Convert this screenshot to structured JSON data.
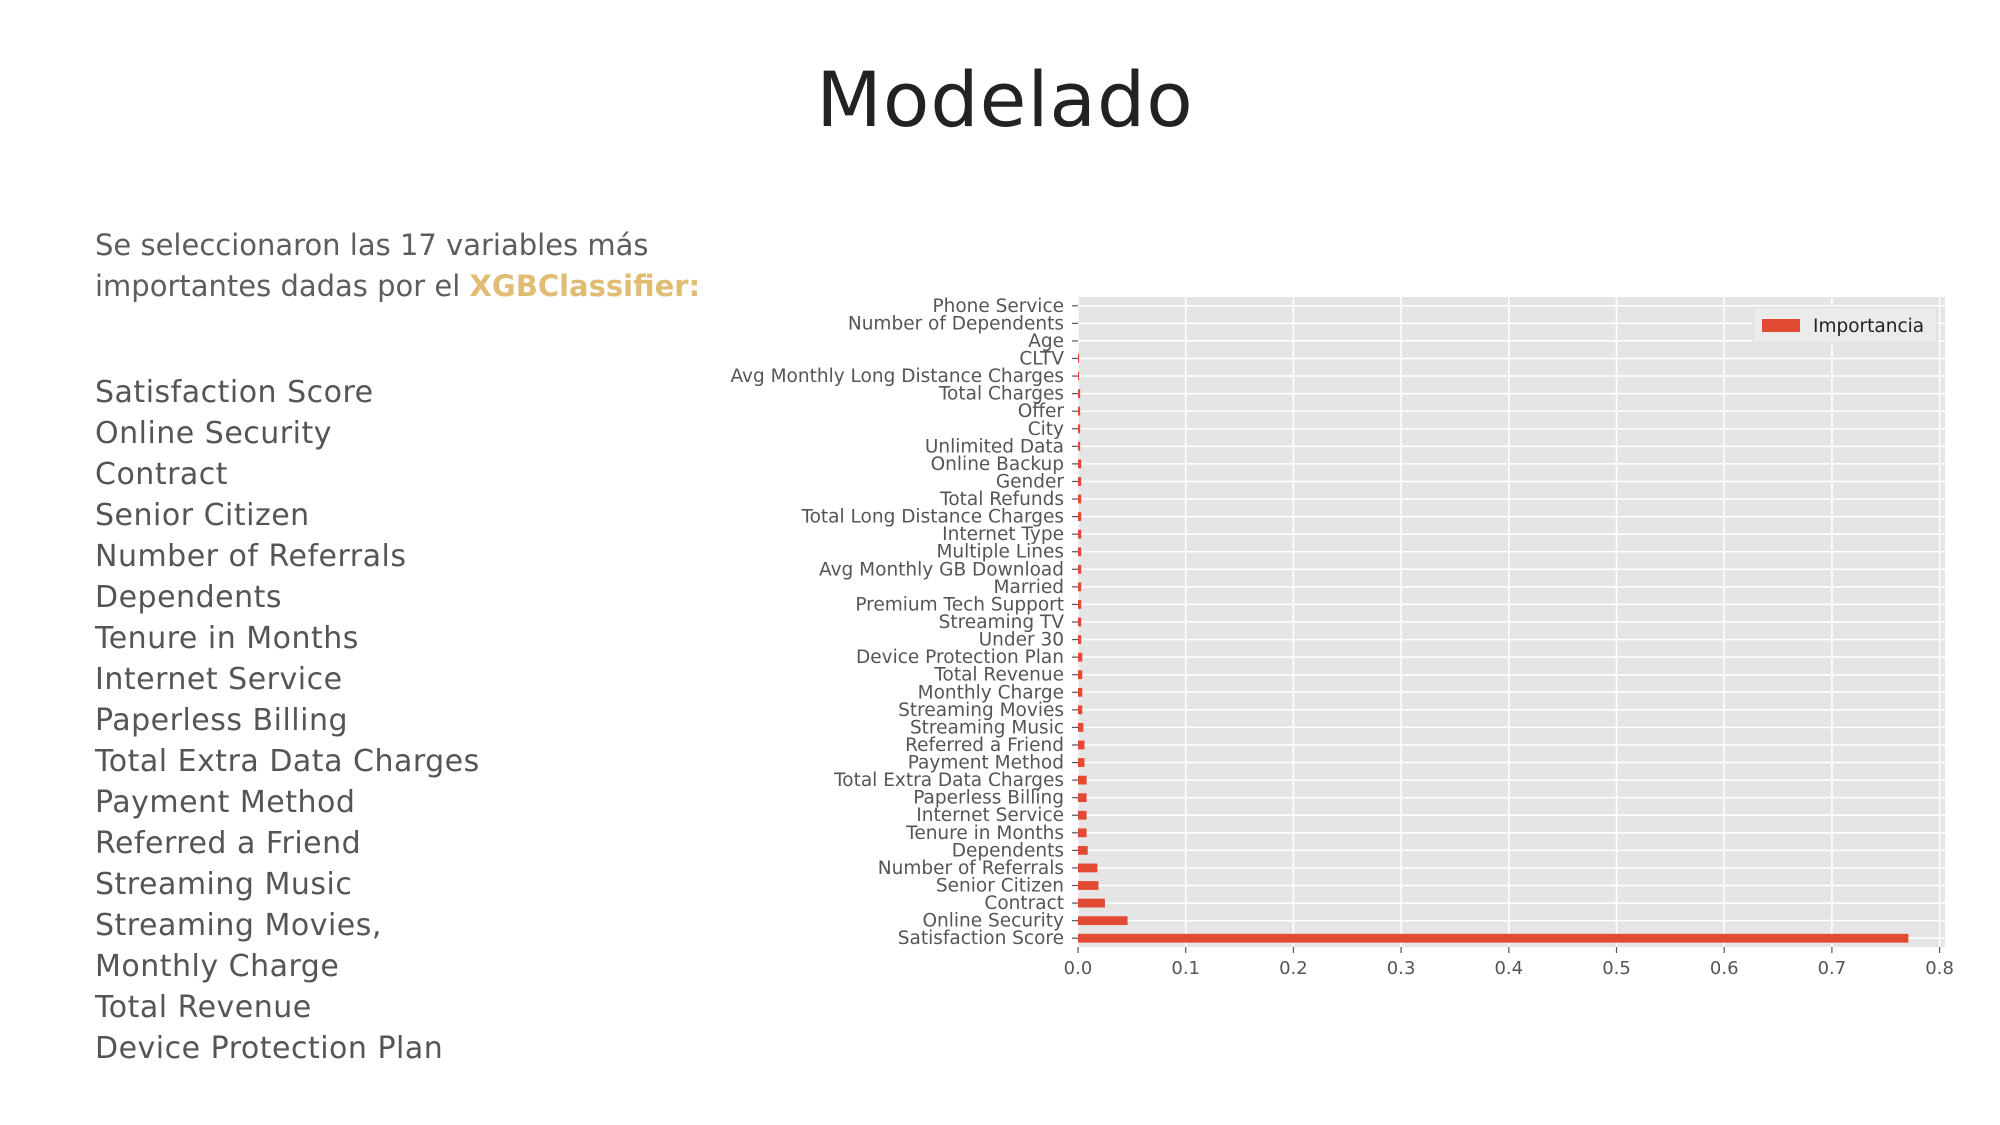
{
  "slide": {
    "title": "Modelado",
    "intro_prefix": "Se seleccionaron las 17 variables más importantes dadas por el",
    "intro_accent": "XGBClassifier:",
    "selected_variables": [
      "Satisfaction Score",
      "Online Security",
      "Contract",
      "Senior Citizen",
      "Number of Referrals",
      "Dependents",
      "Tenure in Months",
      "Internet Service",
      "Paperless Billing",
      "Total Extra Data Charges",
      "Payment Method",
      "Referred a Friend",
      "Streaming Music",
      "Streaming Movies,",
      "Monthly Charge",
      "Total Revenue",
      "Device Protection Plan"
    ]
  },
  "colors": {
    "accent": "#e0bc74",
    "bar": "#e24a33",
    "plot_bg": "#e5e5e5",
    "grid": "#ffffff"
  },
  "chart_data": {
    "type": "bar",
    "orientation": "horizontal",
    "categories": [
      "Satisfaction Score",
      "Online Security",
      "Contract",
      "Senior Citizen",
      "Number of Referrals",
      "Dependents",
      "Tenure in Months",
      "Internet Service",
      "Paperless Billing",
      "Total Extra Data Charges",
      "Payment Method",
      "Referred a Friend",
      "Streaming Music",
      "Streaming Movies",
      "Monthly Charge",
      "Total Revenue",
      "Device Protection Plan",
      "Under 30",
      "Streaming TV",
      "Premium Tech Support",
      "Married",
      "Avg Monthly GB Download",
      "Multiple Lines",
      "Internet Type",
      "Total Long Distance Charges",
      "Total Refunds",
      "Gender",
      "Online Backup",
      "Unlimited Data",
      "City",
      "Offer",
      "Total Charges",
      "Avg Monthly Long Distance Charges",
      "CLTV",
      "Age",
      "Number of Dependents",
      "Phone Service"
    ],
    "series": [
      {
        "name": "Importancia",
        "values": [
          0.771,
          0.046,
          0.025,
          0.019,
          0.018,
          0.009,
          0.008,
          0.008,
          0.008,
          0.008,
          0.006,
          0.006,
          0.005,
          0.004,
          0.004,
          0.004,
          0.004,
          0.003,
          0.003,
          0.003,
          0.003,
          0.003,
          0.003,
          0.003,
          0.003,
          0.003,
          0.003,
          0.003,
          0.002,
          0.002,
          0.002,
          0.002,
          0.001,
          0.001,
          0.0,
          0.0,
          0.0
        ]
      }
    ],
    "xlim": [
      0.0,
      0.805
    ],
    "xticks": [
      "0.0",
      "0.1",
      "0.2",
      "0.3",
      "0.4",
      "0.5",
      "0.6",
      "0.7",
      "0.8"
    ],
    "grid": true,
    "legend_position": "top-right"
  }
}
